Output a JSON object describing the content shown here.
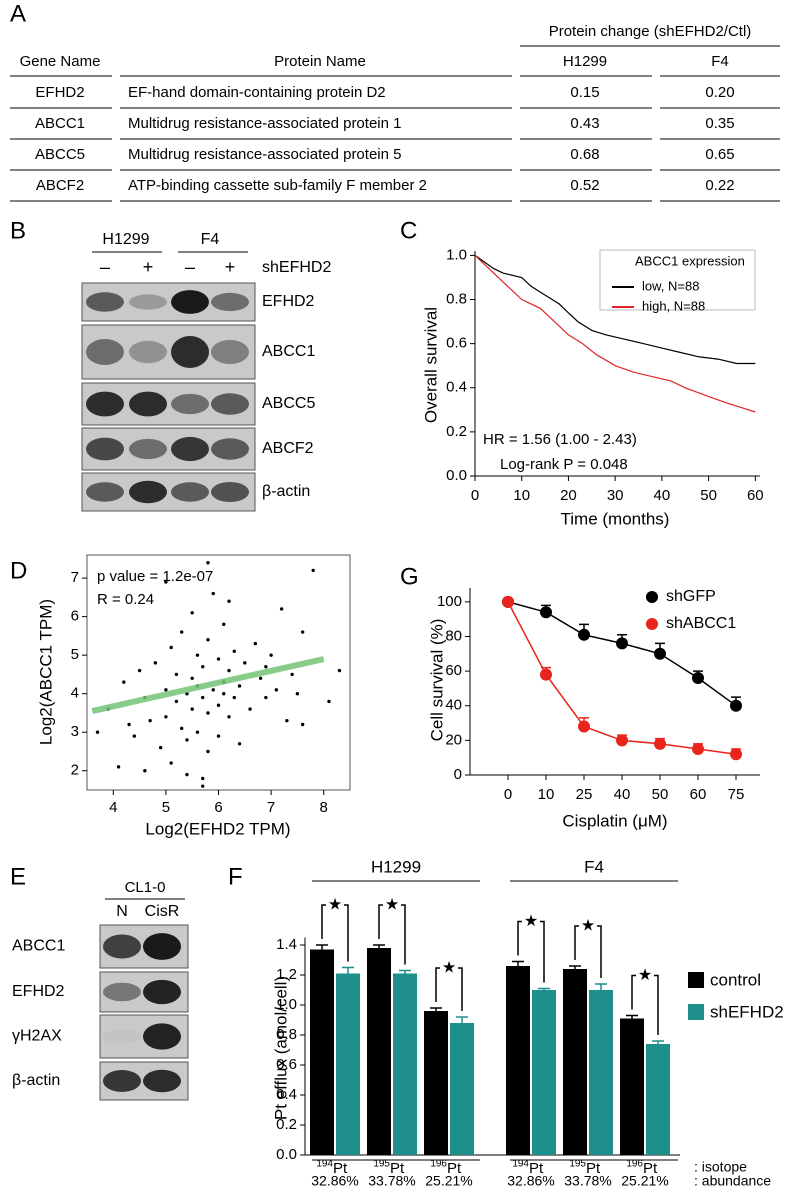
{
  "panel_labels": [
    "A",
    "B",
    "C",
    "D",
    "E",
    "F",
    "G"
  ],
  "table": {
    "group_header": "Protein change (shEFHD2/Ctl)",
    "columns": [
      "Gene Name",
      "Protein Name",
      "H1299",
      "F4"
    ],
    "rows": [
      [
        "EFHD2",
        "EF-hand domain-containing protein D2",
        "0.15",
        "0.20"
      ],
      [
        "ABCC1",
        "Multidrug resistance-associated protein 1",
        "0.43",
        "0.35"
      ],
      [
        "ABCC5",
        "Multidrug resistance-associated protein 5",
        "0.68",
        "0.65"
      ],
      [
        "ABCF2",
        "ATP-binding cassette sub-family F member 2",
        "0.52",
        "0.22"
      ]
    ]
  },
  "blot_b": {
    "groups": [
      "H1299",
      "F4"
    ],
    "conditions": [
      "–",
      "+",
      "–",
      "+"
    ],
    "treatment": "shEFHD2",
    "proteins": [
      "EFHD2",
      "ABCC1",
      "ABCC5",
      "ABCF2",
      "β-actin"
    ]
  },
  "blot_e": {
    "cell_line": "CL1-0",
    "lanes": [
      "N",
      "CisR"
    ],
    "proteins": [
      "ABCC1",
      "EFHD2",
      "γH2AX",
      "β-actin"
    ]
  },
  "chart_data": [
    {
      "type": "line",
      "xlabel": "Time (months)",
      "ylabel": "Overall survival",
      "xlim": [
        0,
        61
      ],
      "ylim": [
        0,
        1.02
      ],
      "xticks": [
        0,
        10,
        20,
        30,
        40,
        50,
        60
      ],
      "yticks": [
        {
          "value": 0,
          "label": "0.0"
        },
        0.2,
        0.4,
        0.6,
        0.8,
        {
          "value": 1,
          "label": "1.0"
        }
      ],
      "legend_title": "ABCC1 expression",
      "legend": "upper right",
      "series": [
        {
          "name": "low,  N=88",
          "color": "#000000",
          "x": [
            0,
            2,
            4,
            6,
            10,
            12,
            15,
            18,
            20,
            22,
            25,
            28,
            32,
            36,
            40,
            44,
            48,
            52,
            56,
            60
          ],
          "values": [
            1,
            0.97,
            0.94,
            0.92,
            0.9,
            0.86,
            0.82,
            0.78,
            0.74,
            0.7,
            0.66,
            0.64,
            0.62,
            0.6,
            0.58,
            0.56,
            0.54,
            0.53,
            0.51,
            0.51
          ]
        },
        {
          "name": "high, N=88",
          "color": "#e0242b",
          "x": [
            0,
            2,
            4,
            6,
            8,
            10,
            14,
            17,
            20,
            23,
            26,
            30,
            34,
            38,
            42,
            45,
            50,
            54,
            57,
            60
          ],
          "values": [
            1,
            0.96,
            0.92,
            0.88,
            0.84,
            0.8,
            0.76,
            0.7,
            0.64,
            0.6,
            0.55,
            0.5,
            0.47,
            0.45,
            0.43,
            0.4,
            0.36,
            0.33,
            0.31,
            0.29
          ]
        }
      ],
      "annotations": [
        "HR = 1.56 (1.00 - 2.43)",
        "Log-rank P = 0.048"
      ]
    },
    {
      "type": "scatter",
      "xlabel": "Log2(EFHD2 TPM)",
      "ylabel": "Log2(ABCC1 TPM)",
      "xlim": [
        3.5,
        8.5
      ],
      "ylim": [
        1.5,
        7.6
      ],
      "xticks": [
        4,
        5,
        6,
        7,
        8
      ],
      "yticks": [
        2,
        3,
        4,
        5,
        6,
        7
      ],
      "color": "#000000",
      "x": [
        3.7,
        3.9,
        4.1,
        4.2,
        4.3,
        4.4,
        4.5,
        4.6,
        4.7,
        4.8,
        4.9,
        5.0,
        5.0,
        5.1,
        5.1,
        5.2,
        5.2,
        5.3,
        5.3,
        5.4,
        5.4,
        5.5,
        5.5,
        5.5,
        5.6,
        5.6,
        5.6,
        5.7,
        5.7,
        5.7,
        5.8,
        5.8,
        5.8,
        5.9,
        5.9,
        6.0,
        6.0,
        6.0,
        6.1,
        6.1,
        6.2,
        6.2,
        6.3,
        6.3,
        6.4,
        6.4,
        6.5,
        6.6,
        6.7,
        6.8,
        6.9,
        7.0,
        7.1,
        7.2,
        7.3,
        7.4,
        7.5,
        7.6,
        7.8,
        8.1,
        8.3,
        5.8,
        6.2,
        5.4,
        4.6,
        5.0,
        6.9,
        7.6,
        5.7,
        6.1
      ],
      "values": [
        3.0,
        3.6,
        2.1,
        4.3,
        3.2,
        2.9,
        4.6,
        3.9,
        3.3,
        4.8,
        2.6,
        4.1,
        3.4,
        5.2,
        2.2,
        3.8,
        4.5,
        3.1,
        5.6,
        4.0,
        2.8,
        4.4,
        3.6,
        6.1,
        4.2,
        3.0,
        5.0,
        1.6,
        3.9,
        4.7,
        3.5,
        5.4,
        2.5,
        4.1,
        6.6,
        3.7,
        4.9,
        2.9,
        4.3,
        5.8,
        3.4,
        4.6,
        3.9,
        5.1,
        4.2,
        2.7,
        4.8,
        3.6,
        5.3,
        4.4,
        3.9,
        5.0,
        4.1,
        6.2,
        3.3,
        4.5,
        4.0,
        5.6,
        7.2,
        3.8,
        4.6,
        7.4,
        6.4,
        1.9,
        2.0,
        6.9,
        4.7,
        3.2,
        1.8,
        4.0
      ],
      "fit": {
        "x": [
          3.6,
          8.0
        ],
        "values": [
          3.55,
          4.9
        ],
        "color": "#74c476"
      },
      "annotations": [
        "p value = 1.2e-07",
        "R = 0.24"
      ]
    },
    {
      "type": "line",
      "xlabel": "Cisplatin (μM)",
      "ylabel": "Cell survival (%)",
      "categories": [
        0,
        10,
        25,
        40,
        50,
        60,
        75
      ],
      "ylim": [
        0,
        108
      ],
      "yticks": [
        0,
        20,
        40,
        60,
        80,
        100
      ],
      "legend": "upper right",
      "markers": true,
      "series": [
        {
          "name": "shGFP",
          "color": "#000000",
          "values": [
            100,
            94,
            81,
            76,
            70,
            56,
            40
          ],
          "errors": [
            0,
            4,
            6,
            5,
            6,
            4,
            5
          ]
        },
        {
          "name": "shABCC1",
          "color": "#e8241c",
          "values": [
            100,
            58,
            28,
            20,
            18,
            15,
            12
          ],
          "errors": [
            0,
            4,
            5,
            3,
            3,
            3,
            3
          ]
        }
      ]
    },
    {
      "type": "bar",
      "ylabel": "Pt efflux (amol/cell)",
      "groups": [
        {
          "name": "H1299",
          "isotopes": [
            {
              "mass": "194",
              "element": "Pt",
              "abundance": "32.86%"
            },
            {
              "mass": "195",
              "element": "Pt",
              "abundance": "33.78%"
            },
            {
              "mass": "196",
              "element": "Pt",
              "abundance": "25.21%"
            }
          ]
        },
        {
          "name": "F4",
          "isotopes": [
            {
              "mass": "194",
              "element": "Pt",
              "abundance": "32.86%"
            },
            {
              "mass": "195",
              "element": "Pt",
              "abundance": "33.78%"
            },
            {
              "mass": "196",
              "element": "Pt",
              "abundance": "25.21%"
            }
          ]
        }
      ],
      "axis_notes": [
        ": isotope",
        ": abundance"
      ],
      "ylim": [
        0,
        1.45
      ],
      "yticks": [
        {
          "value": 0,
          "label": "0.0"
        },
        0.2,
        0.4,
        0.6,
        0.8,
        {
          "value": 1,
          "label": "1.0"
        },
        1.2,
        1.4
      ],
      "legend": "right",
      "significance_marker": "★",
      "series": [
        {
          "name": "control",
          "color": "#000000",
          "values": [
            1.37,
            1.38,
            0.96,
            1.26,
            1.24,
            0.91
          ],
          "errors": [
            0.03,
            0.02,
            0.02,
            0.03,
            0.02,
            0.02
          ]
        },
        {
          "name": "shEFHD2",
          "color": "#1f8f8c",
          "values": [
            1.21,
            1.21,
            0.88,
            1.1,
            1.1,
            0.74
          ],
          "errors": [
            0.04,
            0.02,
            0.04,
            0.01,
            0.04,
            0.02
          ]
        }
      ]
    }
  ]
}
